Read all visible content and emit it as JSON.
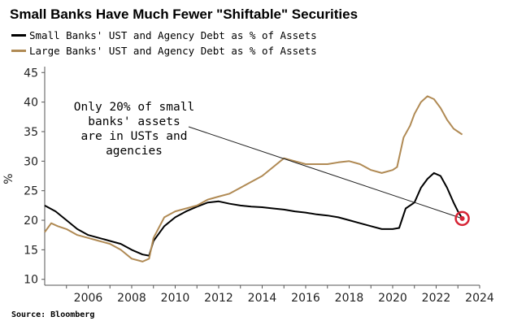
{
  "chart_data": {
    "type": "line",
    "title": "Small Banks Have Much Fewer \"Shiftable\" Securities",
    "ylabel": "%",
    "xlabel": "",
    "xlim": [
      2004,
      2024
    ],
    "ylim": [
      9,
      46
    ],
    "x_ticks": [
      "2006",
      "2008",
      "2010",
      "2012",
      "2014",
      "2016",
      "2018",
      "2020",
      "2022",
      "2024"
    ],
    "y_ticks": [
      "10",
      "15",
      "20",
      "25",
      "30",
      "35",
      "40",
      "45"
    ],
    "grid": false,
    "legend_position": "top-left",
    "annotation": {
      "lines": [
        "Only 20% of small",
        "banks' assets",
        "are in USTs and",
        "agencies"
      ],
      "arrow_from": [
        2007.5,
        33.5
      ],
      "arrow_to": [
        2023.2,
        20.3
      ]
    },
    "highlight_point": {
      "x": 2023.2,
      "y": 20.3
    },
    "source": "Source: Bloomberg",
    "series": [
      {
        "name": "Small Banks' UST and Agency Debt as % of Assets",
        "color": "#000000",
        "x": [
          2004.0,
          2004.5,
          2005.0,
          2005.5,
          2006.0,
          2006.5,
          2007.0,
          2007.5,
          2008.0,
          2008.5,
          2008.8,
          2009.0,
          2009.5,
          2010.0,
          2010.5,
          2011.0,
          2011.5,
          2012.0,
          2012.5,
          2013.0,
          2013.5,
          2014.0,
          2014.5,
          2015.0,
          2015.5,
          2016.0,
          2016.5,
          2017.0,
          2017.5,
          2018.0,
          2018.5,
          2019.0,
          2019.5,
          2020.0,
          2020.3,
          2020.6,
          2021.0,
          2021.3,
          2021.6,
          2021.9,
          2022.2,
          2022.5,
          2022.8,
          2023.0,
          2023.2
        ],
        "y": [
          22.5,
          21.5,
          20.0,
          18.5,
          17.5,
          17.0,
          16.5,
          16.0,
          15.0,
          14.2,
          14.0,
          16.5,
          19.0,
          20.5,
          21.5,
          22.3,
          23.0,
          23.2,
          22.8,
          22.5,
          22.3,
          22.2,
          22.0,
          21.8,
          21.5,
          21.3,
          21.0,
          20.8,
          20.5,
          20.0,
          19.5,
          19.0,
          18.5,
          18.5,
          18.7,
          22.0,
          23.0,
          25.5,
          27.0,
          28.0,
          27.5,
          25.5,
          23.0,
          21.5,
          20.3
        ]
      },
      {
        "name": "Large Banks' UST and Agency Debt as % of Assets",
        "color": "#b08a54",
        "x": [
          2004.0,
          2004.3,
          2004.6,
          2005.0,
          2005.5,
          2006.0,
          2006.5,
          2007.0,
          2007.5,
          2008.0,
          2008.5,
          2008.8,
          2009.0,
          2009.5,
          2010.0,
          2010.5,
          2011.0,
          2011.5,
          2012.0,
          2012.5,
          2013.0,
          2013.5,
          2014.0,
          2014.5,
          2015.0,
          2015.5,
          2016.0,
          2016.5,
          2017.0,
          2017.5,
          2018.0,
          2018.5,
          2019.0,
          2019.5,
          2020.0,
          2020.2,
          2020.5,
          2020.8,
          2021.0,
          2021.3,
          2021.6,
          2021.9,
          2022.2,
          2022.5,
          2022.8,
          2023.0,
          2023.2
        ],
        "y": [
          18.0,
          19.5,
          19.0,
          18.5,
          17.5,
          17.0,
          16.5,
          16.0,
          15.0,
          13.5,
          13.0,
          13.5,
          17.0,
          20.5,
          21.5,
          22.0,
          22.5,
          23.5,
          24.0,
          24.5,
          25.5,
          26.5,
          27.5,
          29.0,
          30.5,
          30.0,
          29.5,
          29.5,
          29.5,
          29.8,
          30.0,
          29.5,
          28.5,
          28.0,
          28.5,
          29.0,
          34.0,
          36.0,
          38.0,
          40.0,
          41.0,
          40.5,
          39.0,
          37.0,
          35.5,
          35.0,
          34.5
        ]
      }
    ]
  }
}
